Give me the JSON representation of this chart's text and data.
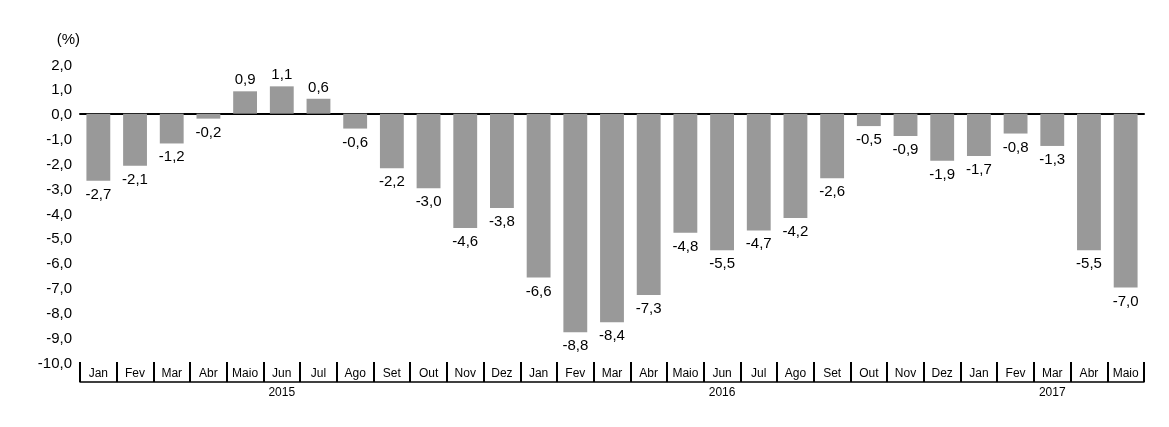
{
  "chart_data": {
    "type": "bar",
    "ylabel": "(%)",
    "categories": [
      "Jan",
      "Fev",
      "Mar",
      "Abr",
      "Maio",
      "Jun",
      "Jul",
      "Ago",
      "Set",
      "Out",
      "Nov",
      "Dez",
      "Jan",
      "Fev",
      "Mar",
      "Abr",
      "Maio",
      "Jun",
      "Jul",
      "Ago",
      "Set",
      "Out",
      "Nov",
      "Dez",
      "Jan",
      "Fev",
      "Mar",
      "Abr",
      "Maio"
    ],
    "values": [
      -2.7,
      -2.1,
      -1.2,
      -0.2,
      0.9,
      1.1,
      0.6,
      -0.6,
      -2.2,
      -3.0,
      -4.6,
      -3.8,
      -6.6,
      -8.8,
      -8.4,
      -7.3,
      -4.8,
      -5.5,
      -4.7,
      -4.2,
      -2.6,
      -0.5,
      -0.9,
      -1.9,
      -1.7,
      -0.8,
      -1.3,
      -5.5,
      -7.0
    ],
    "value_labels": [
      "-2,7",
      "-2,1",
      "-1,2",
      "-0,2",
      "0,9",
      "1,1",
      "0,6",
      "-0,6",
      "-2,2",
      "-3,0",
      "-4,6",
      "-3,8",
      "-6,6",
      "-8,8",
      "-8,4",
      "-7,3",
      "-4,8",
      "-5,5",
      "-4,7",
      "-4,2",
      "-2,6",
      "-0,5",
      "-0,9",
      "-1,9",
      "-1,7",
      "-0,8",
      "-1,3",
      "-5,5",
      "-7,0"
    ],
    "color": "#999999",
    "ylim": [
      -10,
      2
    ],
    "yticks": [
      {
        "value": -10,
        "label": "-10,0"
      },
      {
        "value": -9,
        "label": "-9,0"
      },
      {
        "value": -8,
        "label": "-8,0"
      },
      {
        "value": -7,
        "label": "-7,0"
      },
      {
        "value": -6,
        "label": "-6,0"
      },
      {
        "value": -5,
        "label": "-5,0"
      },
      {
        "value": -4,
        "label": "-4,0"
      },
      {
        "value": -3,
        "label": "-3,0"
      },
      {
        "value": -2,
        "label": "-2,0"
      },
      {
        "value": -1,
        "label": "-1,0"
      },
      {
        "value": 0,
        "label": "0,0"
      },
      {
        "value": 1,
        "label": "1,0"
      },
      {
        "value": 2,
        "label": "2,0"
      }
    ],
    "annotations": [
      "2015",
      "2016",
      "2017"
    ]
  }
}
